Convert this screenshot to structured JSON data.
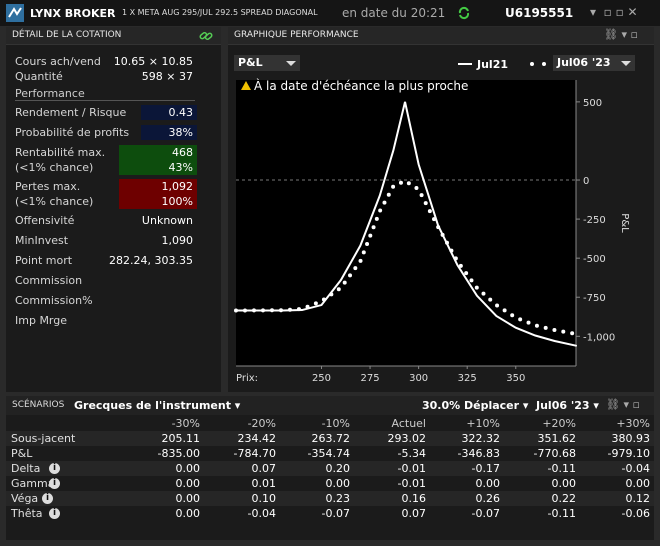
{
  "header": {
    "brand": "LYNX BROKER",
    "instrument": "1 X META AUG 295/JUL 292.5 SPREAD DIAGONAL",
    "date": "en date du 20:21",
    "account": "U6195551"
  },
  "quote": {
    "title": "DÉTAIL DE LA COTATION",
    "top": [
      {
        "label": [
          "Cours ach/vend"
        ],
        "value": [
          "10.65 × 10.85"
        ]
      },
      {
        "label": [
          "Quantité"
        ],
        "value": [
          "598 × 37"
        ]
      }
    ],
    "section": "Performance",
    "perf": [
      {
        "label": [
          "Rendement / Risque"
        ],
        "value": [
          "0.43"
        ],
        "color": "#0b1638"
      },
      {
        "label": [
          "Probabilité de profits"
        ],
        "value": [
          "38%"
        ],
        "color": "#0b1638"
      },
      {
        "label": [
          "Rentabilité max.",
          "(<1% chance)"
        ],
        "value": [
          "468",
          "43%"
        ],
        "color": "#0d4d0d"
      },
      {
        "label": [
          "Pertes max.",
          "(<1% chance)"
        ],
        "value": [
          "1,092",
          "100%"
        ],
        "color": "#6e0000"
      },
      {
        "label": [
          "Offensivité"
        ],
        "value": [
          "Unknown"
        ]
      },
      {
        "label": [
          "MinInvest"
        ],
        "value": [
          "1,090"
        ]
      },
      {
        "label": [
          "Point mort"
        ],
        "value": [
          "282.24, 303.35"
        ]
      },
      {
        "label": [
          "Commission"
        ],
        "value": []
      },
      {
        "label": [
          "Commission%"
        ],
        "value": []
      },
      {
        "label": [
          "Imp Mrge"
        ],
        "value": []
      }
    ]
  },
  "chart_data": {
    "type": "line",
    "title": "GRAPHIQUE PERFORMANCE",
    "metric": "P&L",
    "note": "À la date d'échéance la plus proche",
    "ylabel": "P&L",
    "xlabel": "Prix:",
    "x": [
      206,
      230,
      240,
      250,
      260,
      270,
      280,
      287,
      293,
      300,
      310,
      320,
      330,
      340,
      350,
      360,
      370,
      381
    ],
    "series": [
      {
        "name": "Jul21",
        "color": "#ffffff",
        "style": "solid",
        "values": [
          -835,
          -835,
          -832,
          -800,
          -640,
          -420,
          -100,
          190,
          500,
          100,
          -290,
          -545,
          -740,
          -870,
          -945,
          -995,
          -1030,
          -1060
        ]
      },
      {
        "name": "Jul06 '23",
        "color": "#ffffff",
        "style": "dotted",
        "values": [
          -835,
          -833,
          -825,
          -775,
          -690,
          -520,
          -200,
          -40,
          -5,
          -60,
          -300,
          -520,
          -690,
          -800,
          -880,
          -930,
          -960,
          -985
        ]
      }
    ],
    "xlim": [
      206,
      381
    ],
    "ylim": [
      -1190,
      640
    ],
    "xticks": [
      250,
      275,
      300,
      325,
      350
    ],
    "yticks": [
      500,
      0,
      -250,
      -500,
      -750,
      {
        "value": -1000,
        "label": "-1,000"
      }
    ]
  },
  "scenarios": {
    "title": "SCÉNARIOS",
    "view": "Grecques de l'instrument",
    "move": "30.0% Déplacer",
    "date": "Jul06 '23",
    "columns": [
      "-30%",
      "-20%",
      "-10%",
      "Actuel",
      "+10%",
      "+20%",
      "+30%"
    ],
    "rows": [
      {
        "label": "Sous-jacent",
        "values": [
          "205.11",
          "234.42",
          "263.72",
          "293.02",
          "322.32",
          "351.62",
          "380.93"
        ]
      },
      {
        "label": "P&L",
        "values": [
          "-835.00",
          "-784.70",
          "-354.74",
          "-5.34",
          "-346.83",
          "-770.68",
          "-979.10"
        ]
      },
      {
        "label": "Delta",
        "values": [
          "0.00",
          "0.07",
          "0.20",
          "-0.01",
          "-0.17",
          "-0.11",
          "-0.04"
        ]
      },
      {
        "label": "Gamma",
        "values": [
          "0.00",
          "0.01",
          "0.00",
          "-0.01",
          "0.00",
          "0.00",
          "0.00"
        ]
      },
      {
        "label": "Véga",
        "values": [
          "0.00",
          "0.10",
          "0.23",
          "0.16",
          "0.26",
          "0.22",
          "0.12"
        ]
      },
      {
        "label": "Thêta",
        "values": [
          "0.00",
          "-0.04",
          "-0.07",
          "0.07",
          "-0.07",
          "-0.11",
          "-0.06"
        ]
      }
    ]
  }
}
